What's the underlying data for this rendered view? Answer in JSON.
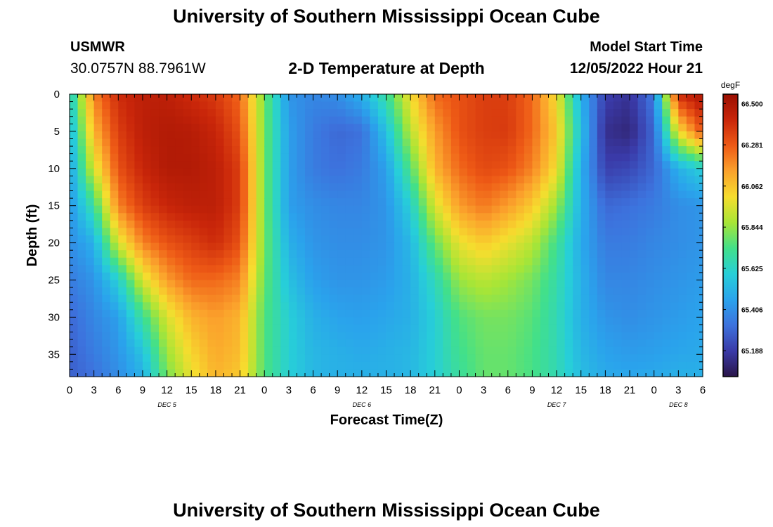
{
  "page": {
    "title_top": "University of Southern Mississippi Ocean Cube",
    "title_bottom": "University of Southern Mississippi Ocean Cube",
    "station": "USMWR",
    "coordinates": "30.0757N  88.7961W",
    "subtitle": "2-D Temperature at Depth",
    "model_start_label": "Model Start Time",
    "model_start_value": "12/05/2022 Hour 21"
  },
  "chart_data": {
    "type": "heatmap",
    "title": "2-D Temperature at Depth",
    "xlabel": "Forecast Time(Z)",
    "ylabel": "Depth (ft)",
    "x_range_hours": [
      0,
      78
    ],
    "x_tick_labels": [
      "0",
      "3",
      "6",
      "9",
      "12",
      "15",
      "18",
      "21",
      "0",
      "3",
      "6",
      "9",
      "12",
      "15",
      "18",
      "21",
      "0",
      "3",
      "6",
      "9",
      "12",
      "15",
      "18",
      "21",
      "0",
      "3",
      "6"
    ],
    "day_labels": [
      {
        "text": "DEC 5",
        "hour": 12
      },
      {
        "text": "DEC 6",
        "hour": 36
      },
      {
        "text": "DEC 7",
        "hour": 60
      },
      {
        "text": "DEC 8",
        "hour": 75
      }
    ],
    "y_range": [
      0,
      38
    ],
    "y_reversed": true,
    "y_ticks": [
      0,
      5,
      10,
      15,
      20,
      25,
      30,
      35
    ],
    "colorbar": {
      "unit": "degF",
      "ticks": [
        "66.500",
        "66.281",
        "66.062",
        "65.844",
        "65.625",
        "65.406",
        "65.188"
      ],
      "range": [
        65.05,
        66.55
      ],
      "colors": [
        "#2a1548",
        "#3a3aa8",
        "#3d72dd",
        "#2aa3ec",
        "#27cfd8",
        "#42e08a",
        "#a8e536",
        "#f6dd2e",
        "#fba22c",
        "#ee5a16",
        "#c9260a",
        "#9a0f02"
      ]
    },
    "x_hours": [
      0,
      3,
      6,
      9,
      12,
      15,
      18,
      21,
      24,
      27,
      30,
      33,
      36,
      39,
      42,
      45,
      48,
      51,
      54,
      57,
      60,
      63,
      66,
      69,
      72,
      75,
      78
    ],
    "y_depths": [
      0,
      5,
      10,
      15,
      20,
      25,
      30,
      35,
      38
    ],
    "z_values": [
      [
        65.58,
        66.2,
        66.4,
        66.45,
        66.45,
        66.4,
        66.36,
        66.25,
        65.8,
        65.42,
        65.38,
        65.4,
        65.5,
        65.7,
        66.0,
        66.25,
        66.3,
        66.35,
        66.35,
        66.25,
        66.0,
        65.5,
        65.2,
        65.16,
        65.35,
        66.4,
        66.5
      ],
      [
        65.5,
        66.1,
        66.35,
        66.45,
        66.48,
        66.47,
        66.42,
        66.3,
        65.8,
        65.45,
        65.35,
        65.3,
        65.32,
        65.55,
        65.9,
        66.15,
        66.3,
        66.35,
        66.36,
        66.25,
        66.05,
        65.55,
        65.15,
        65.12,
        65.3,
        66.0,
        66.3
      ],
      [
        65.45,
        65.95,
        66.3,
        66.42,
        66.48,
        66.48,
        66.45,
        66.35,
        65.8,
        65.45,
        65.35,
        65.32,
        65.35,
        65.45,
        65.75,
        66.1,
        66.25,
        66.32,
        66.3,
        66.2,
        66.0,
        65.5,
        65.2,
        65.22,
        65.3,
        65.5,
        65.6
      ],
      [
        65.42,
        65.7,
        66.2,
        66.35,
        66.42,
        66.45,
        66.45,
        66.35,
        65.8,
        65.45,
        65.4,
        65.38,
        65.38,
        65.42,
        65.6,
        65.95,
        66.15,
        66.22,
        66.15,
        66.05,
        65.85,
        65.5,
        65.3,
        65.32,
        65.35,
        65.4,
        65.42
      ],
      [
        65.4,
        65.5,
        65.95,
        66.2,
        66.3,
        66.35,
        66.4,
        66.3,
        65.8,
        65.5,
        65.42,
        65.4,
        65.4,
        65.42,
        65.52,
        65.78,
        65.98,
        66.05,
        65.98,
        65.9,
        65.72,
        65.48,
        65.35,
        65.35,
        65.38,
        65.4,
        65.42
      ],
      [
        65.35,
        65.42,
        65.6,
        65.95,
        66.15,
        66.25,
        66.25,
        66.2,
        65.78,
        65.55,
        65.45,
        65.42,
        65.42,
        65.44,
        65.5,
        65.65,
        65.85,
        65.9,
        65.86,
        65.8,
        65.68,
        65.5,
        65.38,
        65.38,
        65.4,
        65.42,
        65.44
      ],
      [
        65.3,
        65.38,
        65.45,
        65.7,
        65.95,
        66.1,
        66.15,
        66.1,
        65.75,
        65.6,
        65.5,
        65.46,
        65.45,
        65.47,
        65.5,
        65.6,
        65.75,
        65.8,
        65.8,
        65.76,
        65.66,
        65.5,
        65.42,
        65.4,
        65.42,
        65.44,
        65.46
      ],
      [
        65.28,
        65.35,
        65.42,
        65.55,
        65.85,
        66.02,
        66.12,
        66.08,
        65.75,
        65.6,
        65.52,
        65.5,
        65.48,
        65.5,
        65.52,
        65.6,
        65.72,
        65.78,
        65.78,
        65.74,
        65.66,
        65.52,
        65.46,
        65.44,
        65.45,
        65.47,
        65.48
      ],
      [
        65.28,
        65.32,
        65.4,
        65.5,
        65.8,
        65.98,
        66.1,
        66.05,
        65.75,
        65.6,
        65.52,
        65.5,
        65.5,
        65.5,
        65.52,
        65.6,
        65.7,
        65.78,
        65.78,
        65.74,
        65.66,
        65.54,
        65.48,
        65.47,
        65.48,
        65.5,
        65.5
      ]
    ]
  }
}
